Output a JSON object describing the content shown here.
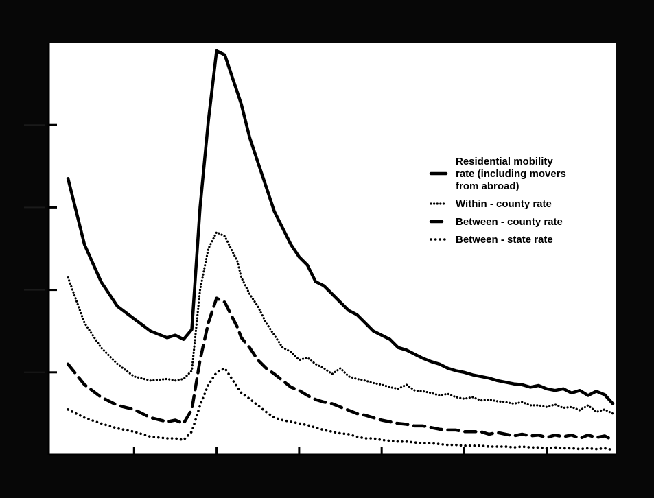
{
  "chart_data": {
    "type": "line",
    "title": "",
    "xlabel": "",
    "ylabel": "",
    "xlim": [
      0,
      68
    ],
    "ylim": [
      0,
      5
    ],
    "x_ticks": [
      10,
      20,
      30,
      40,
      50,
      60
    ],
    "y_ticks": [
      1,
      2,
      3,
      4
    ],
    "grid": false,
    "legend_position": "right",
    "colors": {
      "background": "#070707",
      "plot": "#ffffff",
      "ink": "#000000"
    },
    "series": [
      {
        "name": "Residential mobility rate (including movers from abroad)",
        "style": "solid",
        "x": [
          2,
          4,
          6,
          8,
          10,
          12,
          14,
          15,
          16,
          17,
          18,
          19,
          20,
          21,
          22,
          22.5,
          23,
          24,
          25,
          26,
          27,
          28,
          29,
          30,
          31,
          32,
          33,
          34,
          35,
          36,
          37,
          38,
          39,
          40,
          41,
          42,
          43,
          44,
          45,
          46,
          47,
          48,
          49,
          50,
          51,
          52,
          53,
          54,
          55,
          56,
          57,
          58,
          59,
          60,
          61,
          62,
          63,
          64,
          65,
          66,
          67,
          68
        ],
        "y": [
          3.35,
          2.55,
          2.1,
          1.8,
          1.65,
          1.5,
          1.42,
          1.45,
          1.4,
          1.52,
          3.0,
          4.05,
          4.9,
          4.85,
          4.55,
          4.4,
          4.25,
          3.85,
          3.55,
          3.25,
          2.95,
          2.75,
          2.55,
          2.4,
          2.3,
          2.1,
          2.05,
          1.95,
          1.85,
          1.75,
          1.7,
          1.6,
          1.5,
          1.45,
          1.4,
          1.3,
          1.27,
          1.22,
          1.17,
          1.13,
          1.1,
          1.05,
          1.02,
          1.0,
          0.97,
          0.95,
          0.93,
          0.9,
          0.88,
          0.86,
          0.85,
          0.82,
          0.84,
          0.8,
          0.78,
          0.8,
          0.75,
          0.78,
          0.72,
          0.77,
          0.73,
          0.62
        ]
      },
      {
        "name": "Within-county rate",
        "style": "small-dots",
        "x": [
          2,
          4,
          6,
          8,
          10,
          12,
          14,
          15,
          16,
          17,
          18,
          19,
          20,
          21,
          22,
          22.5,
          23,
          24,
          25,
          26,
          27,
          28,
          29,
          30,
          31,
          32,
          33,
          34,
          35,
          36,
          37,
          38,
          39,
          40,
          41,
          42,
          43,
          44,
          45,
          46,
          47,
          48,
          49,
          50,
          51,
          52,
          53,
          54,
          55,
          56,
          57,
          58,
          59,
          60,
          61,
          62,
          63,
          64,
          65,
          66,
          67,
          68
        ],
        "y": [
          2.15,
          1.6,
          1.3,
          1.1,
          0.95,
          0.9,
          0.92,
          0.9,
          0.92,
          1.02,
          2.0,
          2.5,
          2.7,
          2.65,
          2.45,
          2.35,
          2.15,
          1.95,
          1.8,
          1.6,
          1.45,
          1.3,
          1.25,
          1.15,
          1.18,
          1.1,
          1.05,
          0.98,
          1.05,
          0.95,
          0.92,
          0.9,
          0.87,
          0.85,
          0.82,
          0.8,
          0.85,
          0.78,
          0.77,
          0.75,
          0.72,
          0.74,
          0.7,
          0.68,
          0.7,
          0.66,
          0.67,
          0.65,
          0.64,
          0.62,
          0.64,
          0.6,
          0.6,
          0.58,
          0.61,
          0.57,
          0.58,
          0.54,
          0.6,
          0.52,
          0.55,
          0.5
        ]
      },
      {
        "name": "Between-county rate",
        "style": "dashed",
        "x": [
          2,
          4,
          6,
          8,
          10,
          12,
          14,
          15,
          16,
          17,
          18,
          19,
          20,
          21,
          22,
          22.5,
          23,
          24,
          25,
          26,
          27,
          28,
          29,
          30,
          31,
          32,
          33,
          34,
          35,
          36,
          37,
          38,
          39,
          40,
          41,
          42,
          43,
          44,
          45,
          46,
          47,
          48,
          49,
          50,
          51,
          52,
          53,
          54,
          55,
          56,
          57,
          58,
          59,
          60,
          61,
          62,
          63,
          64,
          65,
          66,
          67,
          68
        ],
        "y": [
          1.1,
          0.85,
          0.7,
          0.6,
          0.55,
          0.45,
          0.4,
          0.42,
          0.38,
          0.55,
          1.15,
          1.6,
          1.9,
          1.85,
          1.65,
          1.55,
          1.42,
          1.3,
          1.15,
          1.05,
          0.98,
          0.9,
          0.82,
          0.78,
          0.72,
          0.67,
          0.64,
          0.62,
          0.58,
          0.54,
          0.5,
          0.48,
          0.45,
          0.42,
          0.4,
          0.38,
          0.37,
          0.35,
          0.35,
          0.33,
          0.31,
          0.3,
          0.3,
          0.28,
          0.28,
          0.28,
          0.25,
          0.27,
          0.25,
          0.23,
          0.25,
          0.23,
          0.24,
          0.21,
          0.24,
          0.22,
          0.24,
          0.2,
          0.24,
          0.21,
          0.23,
          0.18
        ]
      },
      {
        "name": "Between-state rate",
        "style": "dotted",
        "x": [
          2,
          4,
          6,
          8,
          10,
          12,
          14,
          15,
          16,
          17,
          18,
          19,
          20,
          21,
          22,
          22.5,
          23,
          24,
          25,
          26,
          27,
          28,
          29,
          30,
          31,
          32,
          33,
          34,
          35,
          36,
          37,
          38,
          39,
          40,
          41,
          42,
          43,
          44,
          45,
          46,
          47,
          48,
          49,
          50,
          51,
          52,
          53,
          54,
          55,
          56,
          57,
          58,
          59,
          60,
          61,
          62,
          63,
          64,
          65,
          66,
          67,
          68
        ],
        "y": [
          0.55,
          0.45,
          0.38,
          0.32,
          0.28,
          0.22,
          0.2,
          0.2,
          0.18,
          0.28,
          0.6,
          0.85,
          1.0,
          1.05,
          0.9,
          0.82,
          0.75,
          0.68,
          0.6,
          0.52,
          0.45,
          0.42,
          0.4,
          0.38,
          0.36,
          0.33,
          0.3,
          0.28,
          0.26,
          0.25,
          0.22,
          0.2,
          0.2,
          0.18,
          0.17,
          0.16,
          0.16,
          0.15,
          0.14,
          0.14,
          0.13,
          0.12,
          0.12,
          0.11,
          0.11,
          0.11,
          0.1,
          0.1,
          0.1,
          0.09,
          0.1,
          0.09,
          0.09,
          0.08,
          0.09,
          0.08,
          0.08,
          0.07,
          0.08,
          0.07,
          0.08,
          0.06
        ]
      }
    ],
    "legend": [
      {
        "lines": [
          "Residential mobility",
          "rate (including movers",
          "from abroad)"
        ],
        "style": "solid"
      },
      {
        "lines": [
          "Within - county rate"
        ],
        "style": "small-dots"
      },
      {
        "lines": [
          "Between - county rate"
        ],
        "style": "dashed"
      },
      {
        "lines": [
          "Between - state rate"
        ],
        "style": "dotted"
      }
    ]
  }
}
